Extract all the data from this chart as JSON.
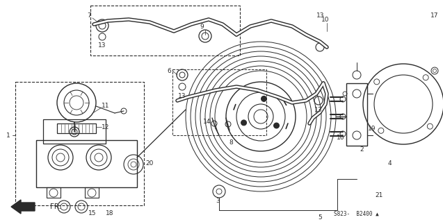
{
  "bg_color": "#ffffff",
  "line_color": "#2a2a2a",
  "diagram_code": "S823– B2400▲",
  "figsize": [
    6.37,
    3.2
  ],
  "dpi": 100
}
